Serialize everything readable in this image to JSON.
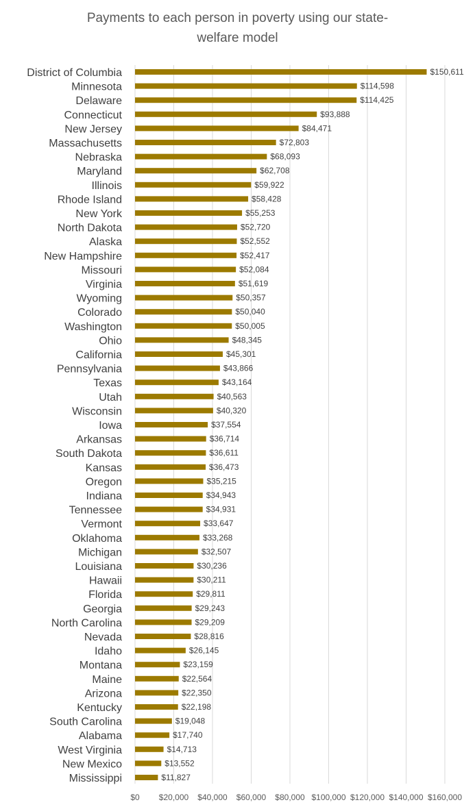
{
  "chart_data": {
    "type": "bar",
    "orientation": "horizontal",
    "title_lines": [
      "Payments to each person in poverty using our state-",
      "welfare model"
    ],
    "xlabel": "",
    "ylabel": "",
    "xlim": [
      0,
      160000
    ],
    "x_ticks": [
      0,
      20000,
      40000,
      60000,
      80000,
      100000,
      120000,
      140000,
      160000
    ],
    "x_tick_labels": [
      "$0",
      "$20,000",
      "$40,000",
      "$60,000",
      "$80,000",
      "$100,000",
      "$120,000",
      "$140,000",
      "$160,000"
    ],
    "grid": "vertical",
    "legend": "none",
    "bar_color": "#9C7A00",
    "categories": [
      "District of Columbia",
      "Minnesota",
      "Delaware",
      "Connecticut",
      "New Jersey",
      "Massachusetts",
      "Nebraska",
      "Maryland",
      "Illinois",
      "Rhode Island",
      "New York",
      "North Dakota",
      "Alaska",
      "New Hampshire",
      "Missouri",
      "Virginia",
      "Wyoming",
      "Colorado",
      "Washington",
      "Ohio",
      "California",
      "Pennsylvania",
      "Texas",
      "Utah",
      "Wisconsin",
      "Iowa",
      "Arkansas",
      "South Dakota",
      "Kansas",
      "Oregon",
      "Indiana",
      "Tennessee",
      "Vermont",
      "Oklahoma",
      "Michigan",
      "Louisiana",
      "Hawaii",
      "Florida",
      "Georgia",
      "North Carolina",
      "Nevada",
      "Idaho",
      "Montana",
      "Maine",
      "Arizona",
      "Kentucky",
      "South Carolina",
      "Alabama",
      "West Virginia",
      "New Mexico",
      "Mississippi"
    ],
    "values": [
      150611,
      114598,
      114425,
      93888,
      84471,
      72803,
      68093,
      62708,
      59922,
      58428,
      55253,
      52720,
      52552,
      52417,
      52084,
      51619,
      50357,
      50040,
      50005,
      48345,
      45301,
      43866,
      43164,
      40563,
      40320,
      37554,
      36714,
      36611,
      36473,
      35215,
      34943,
      34931,
      33647,
      33268,
      32507,
      30236,
      30211,
      29811,
      29243,
      29209,
      28816,
      26145,
      23159,
      22564,
      22350,
      22198,
      19048,
      17740,
      14713,
      13552,
      11827
    ],
    "value_labels": [
      "$150,611",
      "$114,598",
      "$114,425",
      "$93,888",
      "$84,471",
      "$72,803",
      "$68,093",
      "$62,708",
      "$59,922",
      "$58,428",
      "$55,253",
      "$52,720",
      "$52,552",
      "$52,417",
      "$52,084",
      "$51,619",
      "$50,357",
      "$50,040",
      "$50,005",
      "$48,345",
      "$45,301",
      "$43,866",
      "$43,164",
      "$40,563",
      "$40,320",
      "$37,554",
      "$36,714",
      "$36,611",
      "$36,473",
      "$35,215",
      "$34,943",
      "$34,931",
      "$33,647",
      "$33,268",
      "$32,507",
      "$30,236",
      "$30,211",
      "$29,811",
      "$29,243",
      "$29,209",
      "$28,816",
      "$26,145",
      "$23,159",
      "$22,564",
      "$22,350",
      "$22,198",
      "$19,048",
      "$17,740",
      "$14,713",
      "$13,552",
      "$11,827"
    ]
  }
}
